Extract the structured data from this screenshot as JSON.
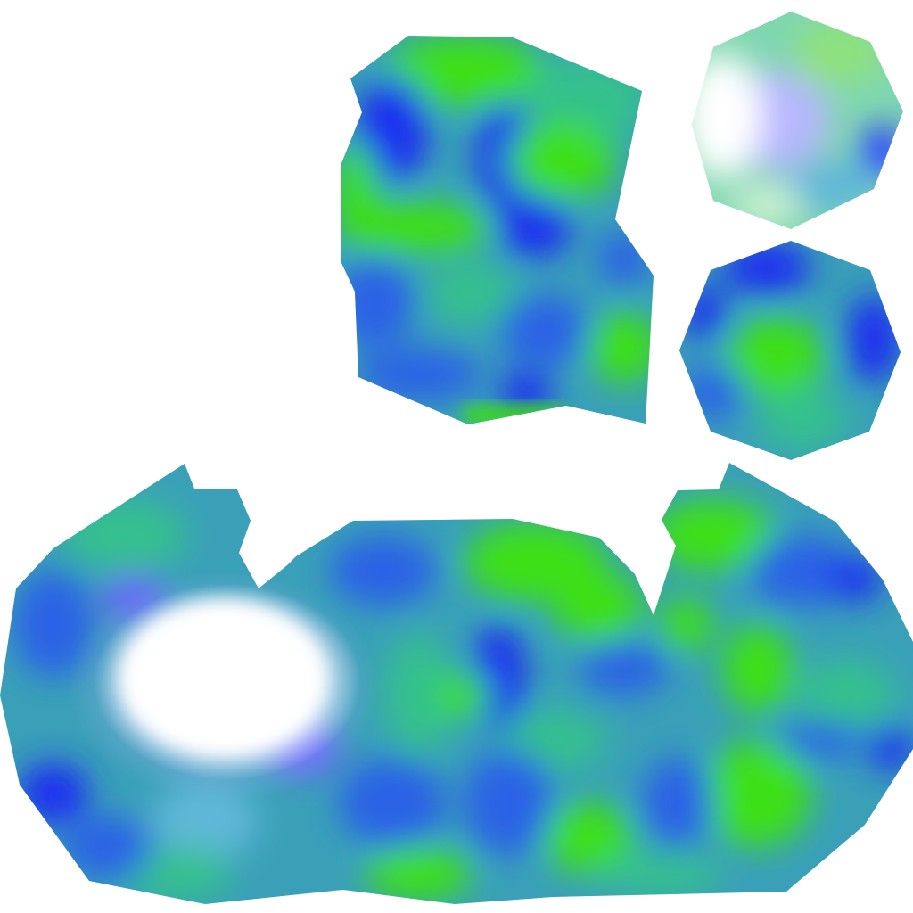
{
  "texture_atlas": {
    "background_color": "#ffffff",
    "palette": {
      "deep_blue": "#1b2ff0",
      "royal_blue": "#2a62e6",
      "teal": "#3aa0b8",
      "sea_green": "#36c08e",
      "lime_green": "#3ee018",
      "pale_violet": "#b8b6ff",
      "highlight_white": "#ffffff"
    },
    "islands": [
      {
        "id": "upper-texture-island"
      },
      {
        "id": "top-right-octagon-island"
      },
      {
        "id": "right-octagon-island"
      },
      {
        "id": "bottom-texture-island"
      }
    ]
  }
}
